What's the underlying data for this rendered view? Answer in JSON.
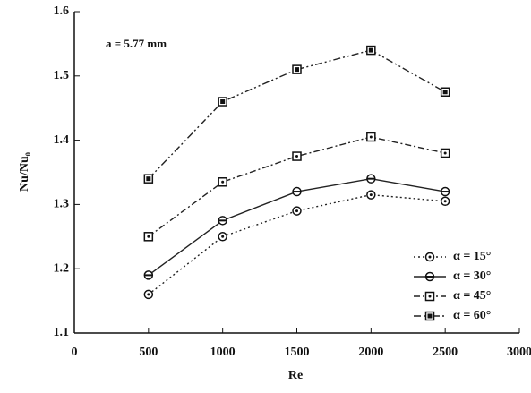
{
  "chart_data": {
    "type": "line",
    "xlabel": "Re",
    "ylabel": "Nu/Nu₀",
    "annotation": "a = 5.77 mm",
    "x": [
      500,
      1000,
      1500,
      2000,
      2500
    ],
    "series": [
      {
        "name": "α = 15°",
        "color": "#222222",
        "line_style": "dotted",
        "marker": "circle-dot",
        "values": [
          1.16,
          1.25,
          1.29,
          1.315,
          1.305
        ]
      },
      {
        "name": "α = 30°",
        "color": "#222222",
        "line_style": "solid",
        "marker": "circle-bar",
        "values": [
          1.19,
          1.275,
          1.32,
          1.34,
          1.32
        ]
      },
      {
        "name": "α = 45°",
        "color": "#222222",
        "line_style": "dashdot",
        "marker": "square-dot",
        "values": [
          1.25,
          1.335,
          1.375,
          1.405,
          1.38
        ]
      },
      {
        "name": "α = 60°",
        "color": "#222222",
        "line_style": "dashed",
        "marker": "square-filled",
        "values": [
          1.34,
          1.46,
          1.51,
          1.54,
          1.475
        ]
      }
    ],
    "xlim": [
      0,
      3000
    ],
    "xticks": [
      0,
      500,
      1000,
      1500,
      2000,
      2500,
      3000
    ],
    "ylim": [
      1.1,
      1.6
    ],
    "yticks": [
      1.1,
      1.2,
      1.3,
      1.4,
      1.5,
      1.6
    ],
    "legend": "lower right"
  }
}
